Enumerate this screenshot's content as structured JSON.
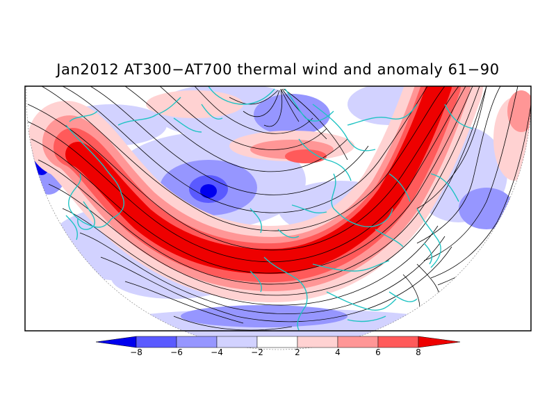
{
  "title": "Jan2012 AT300−AT700 thermal wind and anomaly 61−90",
  "colorbar": {
    "ticks": [
      "−8",
      "−6",
      "−4",
      "−2",
      "2",
      "4",
      "6",
      "8"
    ],
    "colors": [
      "#0000ee",
      "#5a5aff",
      "#9696ff",
      "#d2d2ff",
      "#ffffff",
      "#ffd2d2",
      "#ff9696",
      "#ff5a5a",
      "#ee0000"
    ]
  },
  "colors": {
    "coastline": "#1ec3c3",
    "streamline": "#000000",
    "positive_anomaly": "#ee0000",
    "negative_anomaly": "#0000ee"
  }
}
